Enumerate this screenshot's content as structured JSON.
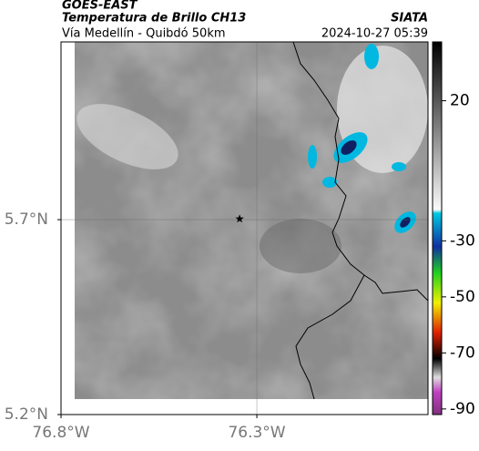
{
  "header": {
    "satellite": "GOES-EAST",
    "product": "Temperatura de Brillo CH13",
    "route": "Vía Medellín - Quibdó 50km",
    "org": "SIATA",
    "timestamp": "2024-10-27 05:39"
  },
  "map": {
    "xlim": [
      -76.8,
      -75.863
    ],
    "ylim": [
      5.2,
      6.156
    ],
    "xticks": [
      {
        "value": -76.8,
        "label": "76.8°W"
      },
      {
        "value": -76.3,
        "label": "76.3°W"
      }
    ],
    "yticks": [
      {
        "value": 5.2,
        "label": "5.2°N"
      },
      {
        "value": 5.7,
        "label": "5.7°N"
      }
    ],
    "grid": true,
    "marker": {
      "lon": -76.344,
      "lat": 5.702
    },
    "colorbar": {
      "clim": [
        -92,
        41
      ],
      "ticks": [
        20,
        -30,
        -50,
        -70,
        -90
      ]
    }
  }
}
